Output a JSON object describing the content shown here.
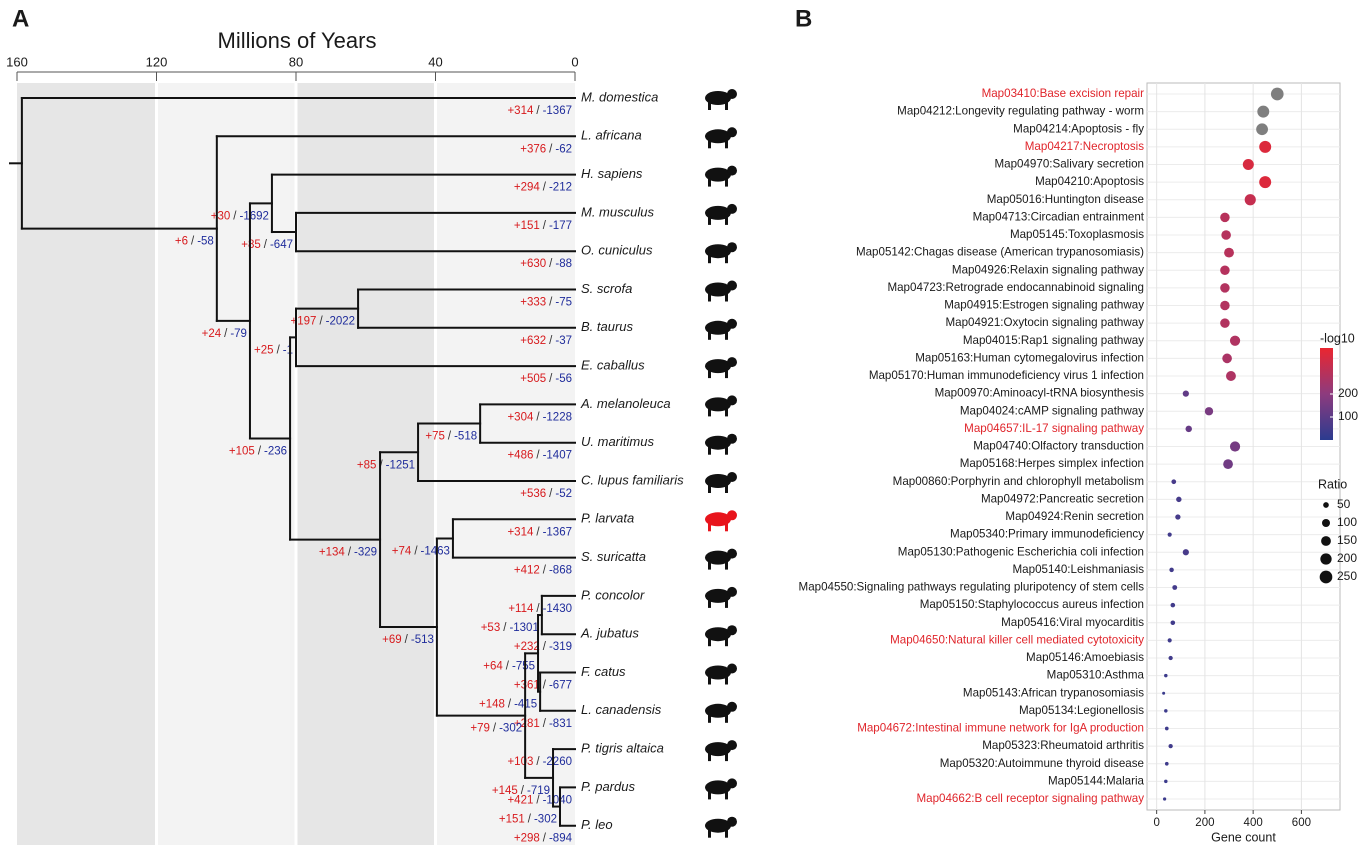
{
  "panel_a": "A",
  "panel_b": "B",
  "tree": {
    "axis_title": "Millions of Years",
    "xlim": [
      160,
      0
    ],
    "xticks": [
      160,
      120,
      80,
      40,
      0
    ],
    "band_colors": [
      "#e6e6e6",
      "#f3f3f3"
    ],
    "gain_color": "#d7191c",
    "loss_color": "#1f2c9b",
    "separator": "/",
    "root": {
      "time": 158.6,
      "children": [
        {
          "name": "M. domestica",
          "gain": "+314",
          "loss": "-1367"
        },
        {
          "time": 102.7,
          "gain": "+6",
          "loss": "-58",
          "children": [
            {
              "name": "L. africana",
              "gain": "+376",
              "loss": "-62"
            },
            {
              "time": 93.2,
              "gain": "+24",
              "loss": "-79",
              "children": [
                {
                  "time": 86.9,
                  "gain": "+30",
                  "loss": "-1692",
                  "children": [
                    {
                      "name": "H. sapiens",
                      "gain": "+294",
                      "loss": "-212"
                    },
                    {
                      "time": 80.0,
                      "gain": "+85",
                      "loss": "-647",
                      "children": [
                        {
                          "name": "M. musculus",
                          "gain": "+151",
                          "loss": "-177"
                        },
                        {
                          "name": "O. cuniculus",
                          "gain": "+630",
                          "loss": "-88"
                        }
                      ]
                    }
                  ]
                },
                {
                  "time": 81.7,
                  "gain": "+105",
                  "loss": "-236",
                  "children": [
                    {
                      "time": 80.0,
                      "gain": "+25",
                      "loss": "-1",
                      "children": [
                        {
                          "time": 62.2,
                          "gain": "+197",
                          "loss": "-2022",
                          "children": [
                            {
                              "name": "S. scrofa",
                              "gain": "+333",
                              "loss": "-75"
                            },
                            {
                              "name": "B. taurus",
                              "gain": "+632",
                              "loss": "-37"
                            }
                          ]
                        },
                        {
                          "name": "E. caballus",
                          "gain": "+505",
                          "loss": "-56"
                        }
                      ]
                    },
                    {
                      "time": 55.9,
                      "gain": "+134",
                      "loss": "-329",
                      "children": [
                        {
                          "time": 45.0,
                          "gain": "+85",
                          "loss": "-1251",
                          "children": [
                            {
                              "time": 27.2,
                              "gain": "+75",
                              "loss": "-518",
                              "children": [
                                {
                                  "name": "A. melanoleuca",
                                  "gain": "+304",
                                  "loss": "-1228"
                                },
                                {
                                  "name": "U. maritimus",
                                  "gain": "+486",
                                  "loss": "-1407"
                                }
                              ]
                            },
                            {
                              "name": "C. lupus familiaris",
                              "gain": "+536",
                              "loss": "-52"
                            }
                          ]
                        },
                        {
                          "time": 39.6,
                          "gain": "+69",
                          "loss": "-513",
                          "children": [
                            {
                              "time": 35.0,
                              "gain": "+74",
                              "loss": "-1463",
                              "children": [
                                {
                                  "name": "P. larvata",
                                  "gain": "+314",
                                  "loss": "-1367",
                                  "color": "#e8141c"
                                },
                                {
                                  "name": "S. suricatta",
                                  "gain": "+412",
                                  "loss": "-868"
                                }
                              ]
                            },
                            {
                              "time": 14.3,
                              "gain": "+79",
                              "loss": "-302",
                              "children": [
                                {
                                  "time": 10.6,
                                  "gain": "+64",
                                  "loss": "-755",
                                  "children": [
                                    {
                                      "time": 9.5,
                                      "gain": "+53",
                                      "loss": "-1301",
                                      "children": [
                                        {
                                          "name": "P. concolor",
                                          "gain": "+114",
                                          "loss": "-1430"
                                        },
                                        {
                                          "name": "A. jubatus",
                                          "gain": "+232",
                                          "loss": "-319"
                                        }
                                      ]
                                    },
                                    {
                                      "time": 10.0,
                                      "gain": "+148",
                                      "loss": "-415",
                                      "children": [
                                        {
                                          "name": "F. catus",
                                          "gain": "+361",
                                          "loss": "-677"
                                        },
                                        {
                                          "name": "L. canadensis",
                                          "gain": "+281",
                                          "loss": "-831"
                                        }
                                      ]
                                    }
                                  ]
                                },
                                {
                                  "time": 6.3,
                                  "gain": "+145",
                                  "loss": "-719",
                                  "children": [
                                    {
                                      "name": "P. tigris altaica",
                                      "gain": "+103",
                                      "loss": "-2260"
                                    },
                                    {
                                      "time": 4.3,
                                      "gain": "+151",
                                      "loss": "-302",
                                      "children": [
                                        {
                                          "name": "P. pardus",
                                          "gain": "+421",
                                          "loss": "-1040"
                                        },
                                        {
                                          "name": "P. leo",
                                          "gain": "+298",
                                          "loss": "-894"
                                        }
                                      ]
                                    }
                                  ]
                                }
                              ]
                            }
                          ]
                        }
                      ]
                    }
                  ]
                }
              ]
            }
          ]
        }
      ]
    }
  },
  "chart_data": {
    "type": "dot",
    "x_label": "Gene count",
    "xlim": [
      -40,
      760
    ],
    "xticks": [
      0,
      200,
      400,
      600
    ],
    "categories": [
      "Map03410:Base excision repair",
      "Map04212:Longevity regulating pathway - worm",
      "Map04214:Apoptosis - fly",
      "Map04217:Necroptosis",
      "Map04970:Salivary secretion",
      "Map04210:Apoptosis",
      "Map05016:Huntington disease",
      "Map04713:Circadian entrainment",
      "Map05145:Toxoplasmosis",
      "Map05142:Chagas disease (American trypanosomiasis)",
      "Map04926:Relaxin signaling pathway",
      "Map04723:Retrograde endocannabinoid signaling",
      "Map04915:Estrogen signaling pathway",
      "Map04921:Oxytocin signaling pathway",
      "Map04015:Rap1 signaling pathway",
      "Map05163:Human cytomegalovirus infection",
      "Map05170:Human immunodeficiency virus 1 infection",
      "Map00970:Aminoacyl-tRNA biosynthesis",
      "Map04024:cAMP signaling pathway",
      "Map04657:IL-17 signaling pathway",
      "Map04740:Olfactory transduction",
      "Map05168:Herpes simplex infection",
      "Map00860:Porphyrin and chlorophyll metabolism",
      "Map04972:Pancreatic secretion",
      "Map04924:Renin secretion",
      "Map05340:Primary immunodeficiency",
      "Map05130:Pathogenic Escherichia coli infection",
      "Map05140:Leishmaniasis",
      "Map04550:Signaling pathways regulating pluripotency of stem cells",
      "Map05150:Staphylococcus aureus infection",
      "Map05416:Viral myocarditis",
      "Map04650:Natural killer cell mediated cytotoxicity",
      "Map05146:Amoebiasis",
      "Map05310:Asthma",
      "Map05143:African trypanosomiasis",
      "Map05134:Legionellosis",
      "Map04672:Intestinal immune network for IgA production",
      "Map05323:Rheumatoid arthritis",
      "Map05320:Autoimmune thyroid disease",
      "Map05144:Malaria",
      "Map04662:B cell receptor signaling pathway"
    ],
    "values": [
      500,
      442,
      437,
      450,
      380,
      450,
      388,
      283,
      288,
      300,
      283,
      283,
      283,
      283,
      325,
      292,
      308,
      121,
      217,
      133,
      325,
      296,
      71,
      92,
      88,
      54,
      121,
      62,
      75,
      67,
      67,
      54,
      58,
      38,
      29,
      38,
      42,
      58,
      42,
      38,
      33
    ],
    "color_values": [
      null,
      null,
      null,
      370,
      360,
      370,
      320,
      290,
      285,
      290,
      285,
      280,
      280,
      280,
      275,
      265,
      270,
      110,
      160,
      120,
      150,
      140,
      60,
      55,
      55,
      45,
      60,
      45,
      50,
      45,
      45,
      40,
      45,
      35,
      30,
      35,
      40,
      45,
      40,
      35,
      35
    ],
    "size_values": [
      250,
      221,
      218,
      225,
      190,
      225,
      194,
      141,
      144,
      150,
      141,
      141,
      141,
      141,
      162,
      146,
      154,
      60,
      108,
      66,
      162,
      148,
      35,
      46,
      44,
      27,
      60,
      31,
      37,
      33,
      33,
      27,
      29,
      19,
      14,
      19,
      21,
      29,
      21,
      19,
      16
    ],
    "na_color": "#7f7f7f",
    "highlighted": [
      0,
      3,
      19,
      31,
      36,
      40
    ],
    "highlight_color": "#e0252b",
    "grid": true,
    "color_legend": {
      "title": "-log10",
      "lim": [
        0,
        400
      ],
      "ticks": [
        100,
        200
      ],
      "colors": [
        "#2b3b8f",
        "#8d3b7e",
        "#ea2630"
      ]
    },
    "size_legend": {
      "title": "Ratio",
      "values": [
        50,
        100,
        150,
        200,
        250
      ]
    }
  }
}
